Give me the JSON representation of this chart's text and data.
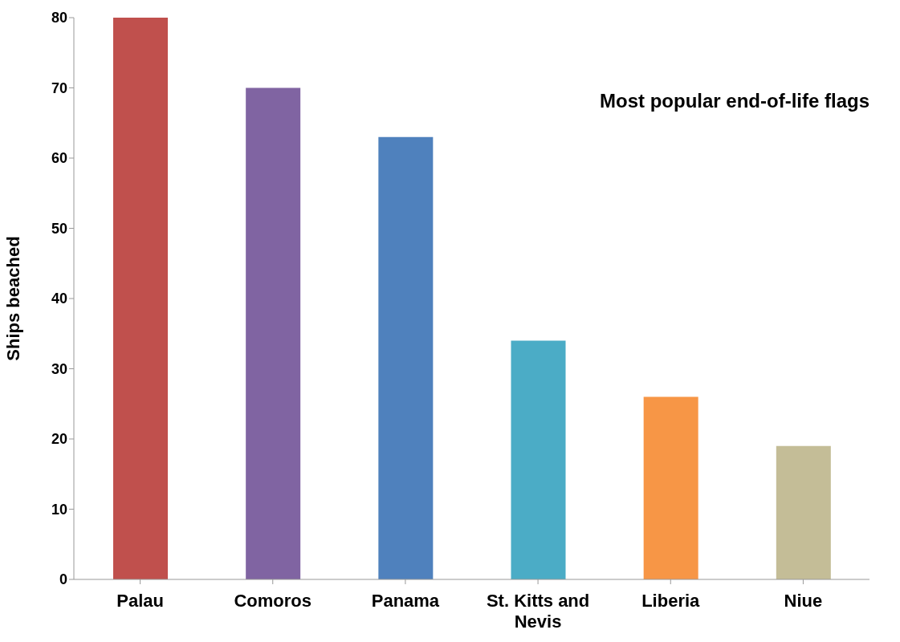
{
  "chart_data": {
    "type": "bar",
    "title": "Most popular end-of-life flags",
    "ylabel": "Ships beached",
    "categories": [
      "Palau",
      "Comoros",
      "Panama",
      "St. Kitts and Nevis",
      "Liberia",
      "Niue"
    ],
    "values": [
      80,
      70,
      63,
      34,
      26,
      19
    ],
    "colors": [
      "#c0504d",
      "#8064a2",
      "#4f81bd",
      "#4bacc6",
      "#f79646",
      "#c4bd97"
    ],
    "ylim": [
      0,
      80
    ],
    "yticks": [
      0,
      10,
      20,
      30,
      40,
      50,
      60,
      70,
      80
    ]
  }
}
